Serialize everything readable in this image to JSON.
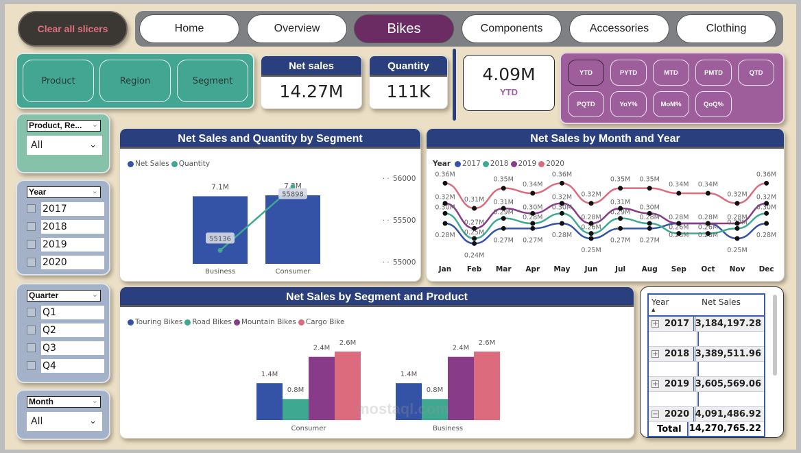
{
  "clear_slicers_label": "Clear all slicers",
  "nav": {
    "tabs": [
      {
        "label": "Home",
        "active": false
      },
      {
        "label": "Overview",
        "active": false
      },
      {
        "label": "Bikes",
        "active": true
      },
      {
        "label": "Components",
        "active": false
      },
      {
        "label": "Accessories",
        "active": false
      },
      {
        "label": "Clothing",
        "active": false
      }
    ]
  },
  "dimension_buttons": [
    "Product",
    "Region",
    "Segment"
  ],
  "kpis": {
    "net_sales": {
      "label": "Net sales",
      "value": "14.27M"
    },
    "quantity": {
      "label": "Quantity",
      "value": "111K"
    },
    "period_value": {
      "value": "4.09M",
      "label": "YTD"
    }
  },
  "period_buttons": [
    "YTD",
    "PYTD",
    "MTD",
    "PMTD",
    "QTD",
    "PQTD",
    "YoY%",
    "MoM%",
    "QoQ%"
  ],
  "period_selected": "YTD",
  "slicers": {
    "field_param": {
      "title": "Product, Re...",
      "value": "All"
    },
    "year": {
      "title": "Year",
      "items": [
        "2017",
        "2018",
        "2019",
        "2020"
      ]
    },
    "quarter": {
      "title": "Quarter",
      "items": [
        "Q1",
        "Q2",
        "Q3",
        "Q4"
      ]
    },
    "month": {
      "title": "Month",
      "value": "All"
    }
  },
  "colors": {
    "navy": "#2a3f7d",
    "blue": "#3553a6",
    "teal": "#3fa891",
    "purple": "#873b88",
    "pink": "#dc6b7e",
    "active_tab": "#6a2c62"
  },
  "chart_data": [
    {
      "type": "bar",
      "title": "Net Sales and Quantity by Segment",
      "legend": [
        "Net Sales",
        "Quantity"
      ],
      "categories": [
        "Business",
        "Consumer"
      ],
      "series": [
        {
          "name": "Net Sales",
          "type": "bar",
          "values": [
            7.1,
            7.2
          ],
          "labels": [
            "7.1M",
            "7.2M"
          ]
        },
        {
          "name": "Quantity",
          "type": "line",
          "values": [
            55136,
            55898
          ],
          "labels": [
            "55136",
            "55898"
          ]
        }
      ],
      "y2_ticks": [
        "56000",
        "55500",
        "55000"
      ],
      "y2lim": [
        55000,
        56000
      ]
    },
    {
      "type": "line",
      "title": "Net Sales by Month and Year",
      "legend_title": "Year",
      "categories": [
        "Jan",
        "Feb",
        "Mar",
        "Apr",
        "May",
        "Jun",
        "Jul",
        "Aug",
        "Sep",
        "Oct",
        "Nov",
        "Dec"
      ],
      "series": [
        {
          "name": "2017",
          "values": [
            0.28,
            0.24,
            0.27,
            0.27,
            0.28,
            0.25,
            0.27,
            0.27,
            0.28,
            0.28,
            0.25,
            0.28
          ]
        },
        {
          "name": "2018",
          "values": [
            0.3,
            0.25,
            0.29,
            0.28,
            0.3,
            0.26,
            0.29,
            0.28,
            0.26,
            0.26,
            0.27,
            0.3
          ]
        },
        {
          "name": "2019",
          "values": [
            0.32,
            0.27,
            0.31,
            0.3,
            0.32,
            0.28,
            0.31,
            0.3,
            0.28,
            0.28,
            0.28,
            0.32
          ]
        },
        {
          "name": "2020",
          "values": [
            0.36,
            0.31,
            0.35,
            0.34,
            0.36,
            0.32,
            0.35,
            0.35,
            0.34,
            0.34,
            0.32,
            0.36
          ]
        }
      ],
      "unit": "M"
    },
    {
      "type": "bar",
      "title": "Net Sales by Segment and Product",
      "legend": [
        "Touring Bikes",
        "Road Bikes",
        "Mountain Bikes",
        "Cargo Bike"
      ],
      "categories": [
        "Consumer",
        "Business"
      ],
      "series": [
        {
          "name": "Touring Bikes",
          "values": [
            1.4,
            1.4
          ]
        },
        {
          "name": "Road Bikes",
          "values": [
            0.8,
            0.8
          ]
        },
        {
          "name": "Mountain Bikes",
          "values": [
            2.4,
            2.4
          ]
        },
        {
          "name": "Cargo Bike",
          "values": [
            2.6,
            2.6
          ]
        }
      ],
      "unit": "M"
    }
  ],
  "table": {
    "headers": [
      "Year",
      "Net Sales"
    ],
    "rows": [
      {
        "year": "2017",
        "value": "3,184,197.28",
        "expanded": false
      },
      {
        "year": "2018",
        "value": "3,389,511.96",
        "expanded": false
      },
      {
        "year": "2019",
        "value": "3,605,569.06",
        "expanded": false
      },
      {
        "year": "2020",
        "value": "4,091,486.92",
        "expanded": true
      }
    ],
    "total_label": "Total",
    "total_value": "14,270,765.22"
  },
  "watermark": "mostaql.com"
}
